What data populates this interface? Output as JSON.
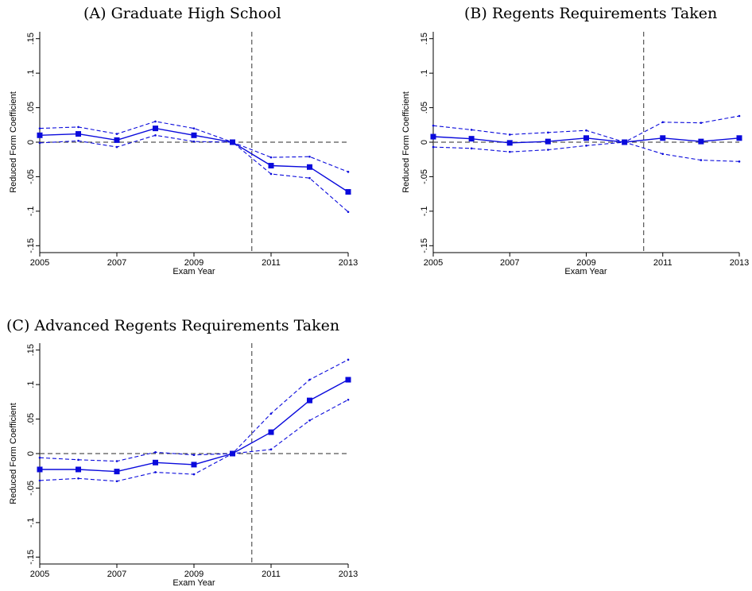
{
  "chart_data": [
    {
      "type": "line",
      "title": "(A) Graduate High School",
      "xlabel": "Exam Year",
      "ylabel": "Reduced Form Coefficient",
      "x": [
        2005,
        2006,
        2007,
        2008,
        2009,
        2010,
        2011,
        2012,
        2013
      ],
      "xticks": [
        "2005",
        "2007",
        "2009",
        "2011",
        "2013"
      ],
      "yticks": [
        "-.15",
        "-.1",
        "-.05",
        "0",
        ".05",
        ".1",
        ".15"
      ],
      "ylim": [
        -0.16,
        0.16
      ],
      "xlim": [
        2005,
        2013
      ],
      "vline_x": 2010.5,
      "hline_y": 0,
      "series": [
        {
          "role": "estimate",
          "values": [
            0.01,
            0.012,
            0.003,
            0.02,
            0.01,
            0.0,
            -0.034,
            -0.036,
            -0.072
          ]
        },
        {
          "role": "upper_ci",
          "values": [
            0.02,
            0.022,
            0.012,
            0.03,
            0.02,
            0.0,
            -0.022,
            -0.021,
            -0.043
          ]
        },
        {
          "role": "lower_ci",
          "values": [
            -0.001,
            0.002,
            -0.007,
            0.01,
            0.001,
            0.0,
            -0.046,
            -0.052,
            -0.101
          ]
        }
      ]
    },
    {
      "type": "line",
      "title": "(B) Regents Requirements Taken",
      "xlabel": "Exam Year",
      "ylabel": "Reduced Form Coefficient",
      "x": [
        2005,
        2006,
        2007,
        2008,
        2009,
        2010,
        2011,
        2012,
        2013
      ],
      "xticks": [
        "2005",
        "2007",
        "2009",
        "2011",
        "2013"
      ],
      "yticks": [
        "-.15",
        "-.1",
        "-.05",
        "0",
        ".05",
        ".1",
        ".15"
      ],
      "ylim": [
        -0.16,
        0.16
      ],
      "xlim": [
        2005,
        2013
      ],
      "vline_x": 2010.5,
      "hline_y": 0,
      "series": [
        {
          "role": "estimate",
          "values": [
            0.008,
            0.005,
            -0.001,
            0.001,
            0.006,
            0.0,
            0.006,
            0.001,
            0.006
          ]
        },
        {
          "role": "upper_ci",
          "values": [
            0.024,
            0.018,
            0.011,
            0.014,
            0.017,
            0.0,
            0.029,
            0.028,
            0.038
          ]
        },
        {
          "role": "lower_ci",
          "values": [
            -0.007,
            -0.009,
            -0.014,
            -0.011,
            -0.005,
            0.0,
            -0.017,
            -0.026,
            -0.028
          ]
        }
      ]
    },
    {
      "type": "line",
      "title": "(C) Advanced Regents Requirements Taken",
      "xlabel": "Exam Year",
      "ylabel": "Reduced Form Coefficient",
      "x": [
        2005,
        2006,
        2007,
        2008,
        2009,
        2010,
        2011,
        2012,
        2013
      ],
      "xticks": [
        "2005",
        "2007",
        "2009",
        "2011",
        "2013"
      ],
      "yticks": [
        "-.15",
        "-.1",
        "-.05",
        "0",
        ".05",
        ".1",
        ".15"
      ],
      "ylim": [
        -0.16,
        0.16
      ],
      "xlim": [
        2005,
        2013
      ],
      "vline_x": 2010.5,
      "hline_y": 0,
      "series": [
        {
          "role": "estimate",
          "values": [
            -0.023,
            -0.023,
            -0.026,
            -0.013,
            -0.016,
            0.0,
            0.031,
            0.077,
            0.107
          ]
        },
        {
          "role": "upper_ci",
          "values": [
            -0.006,
            -0.009,
            -0.011,
            0.002,
            -0.002,
            0.0,
            0.058,
            0.107,
            0.136
          ]
        },
        {
          "role": "lower_ci",
          "values": [
            -0.039,
            -0.036,
            -0.04,
            -0.027,
            -0.03,
            0.0,
            0.006,
            0.048,
            0.078
          ]
        }
      ]
    }
  ],
  "colors": {
    "series": "#0a0adc",
    "reference": "#555555",
    "axis": "#000000"
  }
}
